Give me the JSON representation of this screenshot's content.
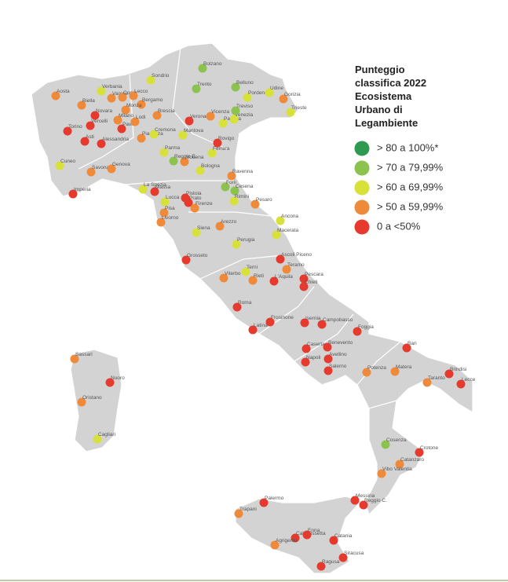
{
  "legend": {
    "title": [
      "Punteggio",
      "classifica 2022",
      "Ecosistema",
      "Urbano di",
      "Legambiente"
    ],
    "items": [
      {
        "label": "> 80 a 100%*",
        "color": "#2e9a4f"
      },
      {
        "label": "> 70 a 79,99%",
        "color": "#8cc34e"
      },
      {
        "label": "> 60 a 69,99%",
        "color": "#d8e03a"
      },
      {
        "label": "> 50 a 59,99%",
        "color": "#ef8a3a"
      },
      {
        "label": "0 a <50%",
        "color": "#e63a2e"
      }
    ]
  },
  "cities": [
    {
      "name": "Aosta",
      "class": 3
    },
    {
      "name": "Biella",
      "class": 3
    },
    {
      "name": "Verbania",
      "class": 2
    },
    {
      "name": "Varese",
      "class": 3
    },
    {
      "name": "Como",
      "class": 3
    },
    {
      "name": "Lecco",
      "class": 3
    },
    {
      "name": "Sondrio",
      "class": 2
    },
    {
      "name": "Bergamo",
      "class": 3
    },
    {
      "name": "Monza",
      "class": 3
    },
    {
      "name": "Novara",
      "class": 4
    },
    {
      "name": "Milano",
      "class": 3
    },
    {
      "name": "Vercelli",
      "class": 4
    },
    {
      "name": "Pavia",
      "class": 4
    },
    {
      "name": "Lodi",
      "class": 3
    },
    {
      "name": "Brescia",
      "class": 3
    },
    {
      "name": "Torino",
      "class": 4
    },
    {
      "name": "Asti",
      "class": 4
    },
    {
      "name": "Alessandria",
      "class": 4
    },
    {
      "name": "Piacenza",
      "class": 3
    },
    {
      "name": "Cremona",
      "class": 2
    },
    {
      "name": "Mantova",
      "class": 2
    },
    {
      "name": "Verona",
      "class": 4
    },
    {
      "name": "Vicenza",
      "class": 3
    },
    {
      "name": "Padova",
      "class": 2
    },
    {
      "name": "Venezia",
      "class": 2
    },
    {
      "name": "Treviso",
      "class": 1
    },
    {
      "name": "Belluno",
      "class": 1
    },
    {
      "name": "Bolzano",
      "class": 1
    },
    {
      "name": "Trento",
      "class": 1
    },
    {
      "name": "Pordenone",
      "class": 2
    },
    {
      "name": "Udine",
      "class": 2
    },
    {
      "name": "Gorizia",
      "class": 3
    },
    {
      "name": "Trieste",
      "class": 2
    },
    {
      "name": "Rovigo",
      "class": 4
    },
    {
      "name": "Ferrara",
      "class": 2
    },
    {
      "name": "Parma",
      "class": 2
    },
    {
      "name": "Modena",
      "class": 3
    },
    {
      "name": "Reggio E.",
      "class": 1
    },
    {
      "name": "Bologna",
      "class": 2
    },
    {
      "name": "Cuneo",
      "class": 2
    },
    {
      "name": "Savona",
      "class": 3
    },
    {
      "name": "Genova",
      "class": 3
    },
    {
      "name": "Imperia",
      "class": 4
    },
    {
      "name": "La Spezia",
      "class": 2
    },
    {
      "name": "Massa",
      "class": 4
    },
    {
      "name": "Lucca",
      "class": 2
    },
    {
      "name": "Pistoia",
      "class": 4
    },
    {
      "name": "Prato",
      "class": 4
    },
    {
      "name": "Firenze",
      "class": 3
    },
    {
      "name": "Pisa",
      "class": 3
    },
    {
      "name": "Livorno",
      "class": 3
    },
    {
      "name": "Ravenna",
      "class": 3
    },
    {
      "name": "Forlì",
      "class": 1
    },
    {
      "name": "Cesena",
      "class": 1
    },
    {
      "name": "Rimini",
      "class": 2
    },
    {
      "name": "Pesaro",
      "class": 3
    },
    {
      "name": "Ancona",
      "class": 2
    },
    {
      "name": "Macerata",
      "class": 2
    },
    {
      "name": "Arezzo",
      "class": 3
    },
    {
      "name": "Siena",
      "class": 2
    },
    {
      "name": "Perugia",
      "class": 2
    },
    {
      "name": "Grosseto",
      "class": 4
    },
    {
      "name": "Terni",
      "class": 2
    },
    {
      "name": "Viterbo",
      "class": 3
    },
    {
      "name": "Rieti",
      "class": 3
    },
    {
      "name": "Ascoli Piceno",
      "class": 4
    },
    {
      "name": "Teramo",
      "class": 3
    },
    {
      "name": "L'Aquila",
      "class": 4
    },
    {
      "name": "Pescara",
      "class": 4
    },
    {
      "name": "Chieti",
      "class": 4
    },
    {
      "name": "Roma",
      "class": 4
    },
    {
      "name": "Frosinone",
      "class": 4
    },
    {
      "name": "Latina",
      "class": 4
    },
    {
      "name": "Isernia",
      "class": 4
    },
    {
      "name": "Campobasso",
      "class": 4
    },
    {
      "name": "Foggia",
      "class": 4
    },
    {
      "name": "Caserta",
      "class": 4
    },
    {
      "name": "Benevento",
      "class": 4
    },
    {
      "name": "Avellino",
      "class": 4
    },
    {
      "name": "Napoli",
      "class": 4
    },
    {
      "name": "Salerno",
      "class": 4
    },
    {
      "name": "Bari",
      "class": 4
    },
    {
      "name": "Potenza",
      "class": 3
    },
    {
      "name": "Matera",
      "class": 3
    },
    {
      "name": "Taranto",
      "class": 3
    },
    {
      "name": "Brindisi",
      "class": 4
    },
    {
      "name": "Lecce",
      "class": 4
    },
    {
      "name": "Sassari",
      "class": 3
    },
    {
      "name": "Nuoro",
      "class": 4
    },
    {
      "name": "Oristano",
      "class": 3
    },
    {
      "name": "Cagliari",
      "class": 2
    },
    {
      "name": "Cosenza",
      "class": 1
    },
    {
      "name": "Crotone",
      "class": 4
    },
    {
      "name": "Catanzaro",
      "class": 3
    },
    {
      "name": "Vibo Valentia",
      "class": 3
    },
    {
      "name": "Messina",
      "class": 4
    },
    {
      "name": "Reggio C.",
      "class": 4
    },
    {
      "name": "Palermo",
      "class": 4
    },
    {
      "name": "Trapani",
      "class": 3
    },
    {
      "name": "Caltanissetta",
      "class": 4
    },
    {
      "name": "Enna",
      "class": 4
    },
    {
      "name": "Agrigento",
      "class": 3
    },
    {
      "name": "Catania",
      "class": 4
    },
    {
      "name": "Siracusa",
      "class": 4
    },
    {
      "name": "Ragusa",
      "class": 4
    }
  ]
}
